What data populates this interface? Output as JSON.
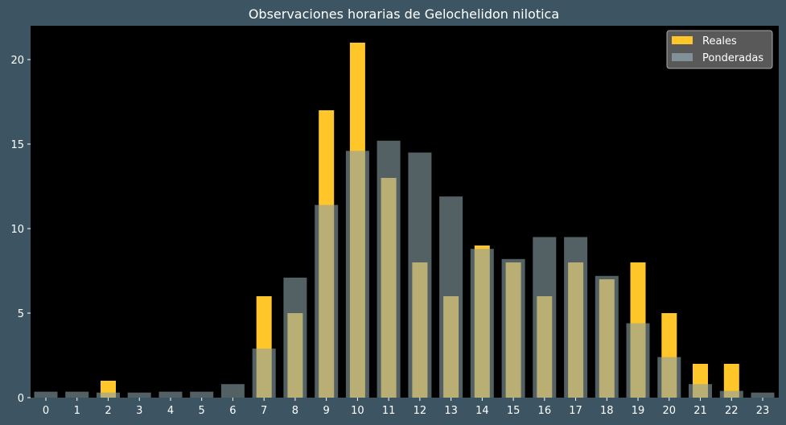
{
  "colors": {
    "figure_bg": "#3d5562",
    "plot_bg": "#000000",
    "text": "#ffffff",
    "reales": "#ffc629",
    "ponderadas": "#8aa0a6",
    "legend_bg": "#595959"
  },
  "chart_data": {
    "type": "bar",
    "title": "Observaciones horarias de Gelochelidon nilotica",
    "xlabel": "",
    "ylabel": "",
    "categories": [
      "0",
      "1",
      "2",
      "3",
      "4",
      "5",
      "6",
      "7",
      "8",
      "9",
      "10",
      "11",
      "12",
      "13",
      "14",
      "15",
      "16",
      "17",
      "18",
      "19",
      "20",
      "21",
      "22",
      "23"
    ],
    "ylim": [
      0,
      22
    ],
    "yticks": [
      0,
      5,
      10,
      15,
      20
    ],
    "grid": false,
    "legend_position": "top-right",
    "series": [
      {
        "name": "Reales",
        "values": [
          0,
          0,
          1,
          0,
          0,
          0,
          0,
          6,
          5,
          17,
          21,
          13,
          8,
          6,
          9,
          8,
          6,
          8,
          7,
          8,
          5,
          2,
          2,
          0
        ]
      },
      {
        "name": "Ponderadas",
        "values": [
          0.35,
          0.35,
          0.3,
          0.3,
          0.35,
          0.35,
          0.8,
          2.9,
          7.1,
          11.4,
          14.6,
          15.2,
          14.5,
          11.9,
          8.8,
          8.2,
          9.5,
          9.5,
          7.2,
          4.4,
          2.4,
          0.8,
          0.4,
          0.3
        ]
      }
    ]
  }
}
